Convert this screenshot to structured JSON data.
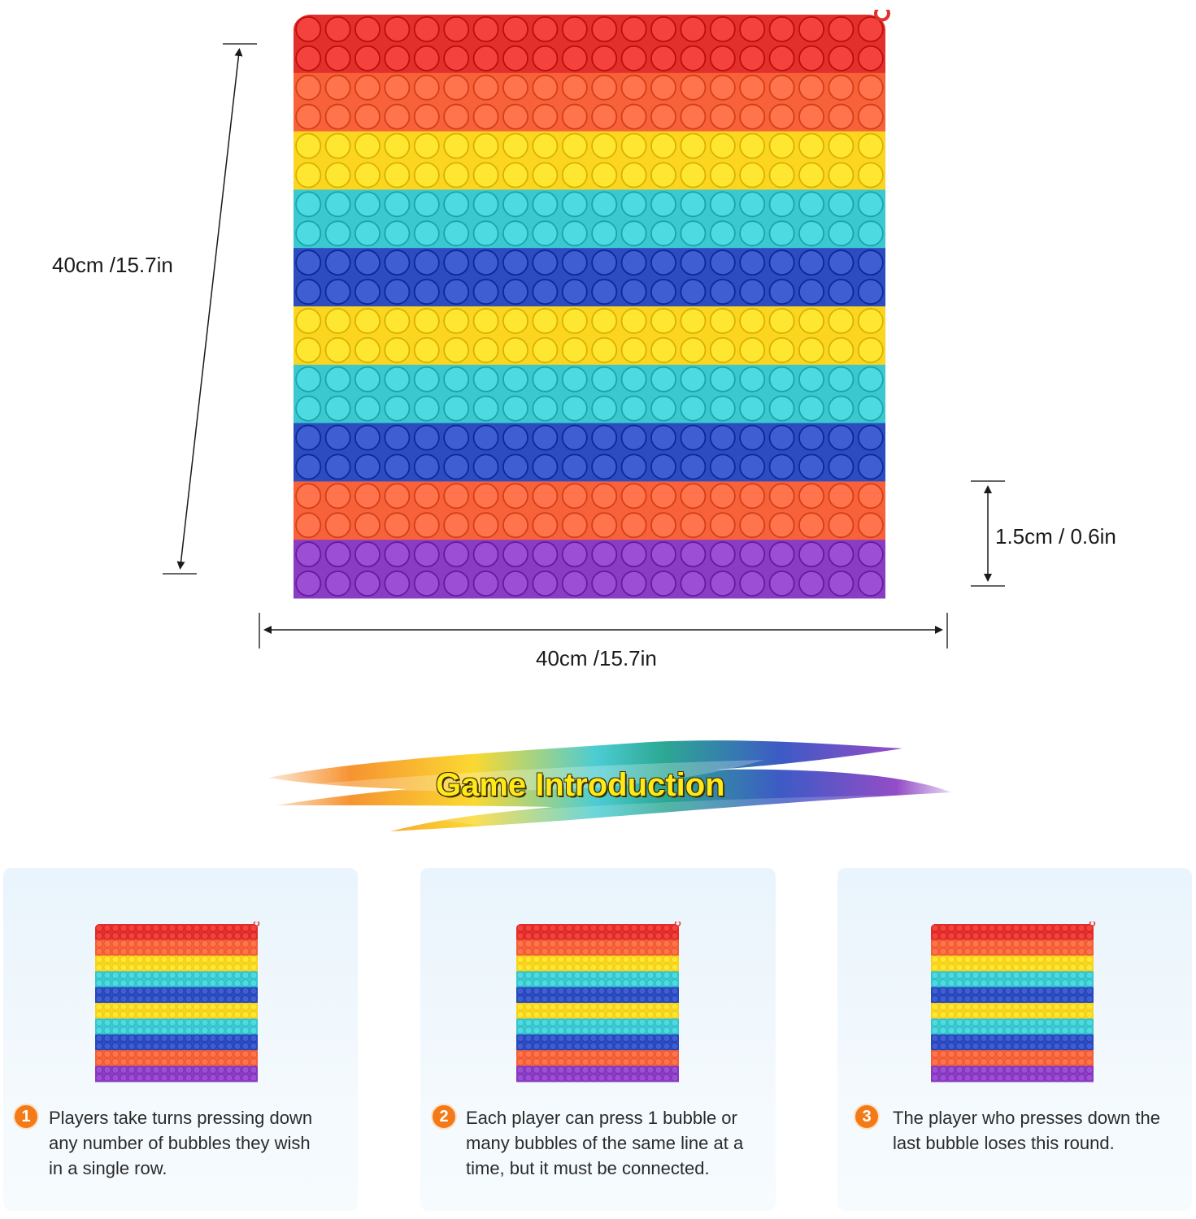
{
  "dimensions": {
    "height_label": "40cm /15.7in",
    "width_label": "40cm /15.7in",
    "thickness_label": "1.5cm / 0.6in"
  },
  "board": {
    "row_colors": [
      "#e2302c",
      "#e2302c",
      "#f7623a",
      "#f7623a",
      "#fbd51f",
      "#fbd51f",
      "#3cc8cf",
      "#3cc8cf",
      "#2c4cc0",
      "#2c4cc0",
      "#fbd51f",
      "#fbd51f",
      "#3cc8cf",
      "#3cc8cf",
      "#2c4cc0",
      "#2c4cc0",
      "#f7623a",
      "#f7623a",
      "#8a3dc2",
      "#8a3dc2"
    ],
    "bubble_rows": 20,
    "bubbles_per_row": 20
  },
  "section": {
    "title": "Game Introduction",
    "brush_colors": [
      "#f58a1f",
      "#fbd51f",
      "#3cc8cf",
      "#1aa08a",
      "#2c4cc0",
      "#8a3dc2"
    ]
  },
  "steps": [
    {
      "number": "1",
      "lines": [
        "Players take turns pressing down",
        "any number of bubbles they wish",
        "in a single row."
      ]
    },
    {
      "number": "2",
      "lines": [
        "Each player can press 1 bubble or",
        "many bubbles of the same line at a",
        "time, but it must be connected."
      ]
    },
    {
      "number": "3",
      "lines": [
        "The player who presses down the",
        "last bubble loses this round."
      ]
    }
  ]
}
